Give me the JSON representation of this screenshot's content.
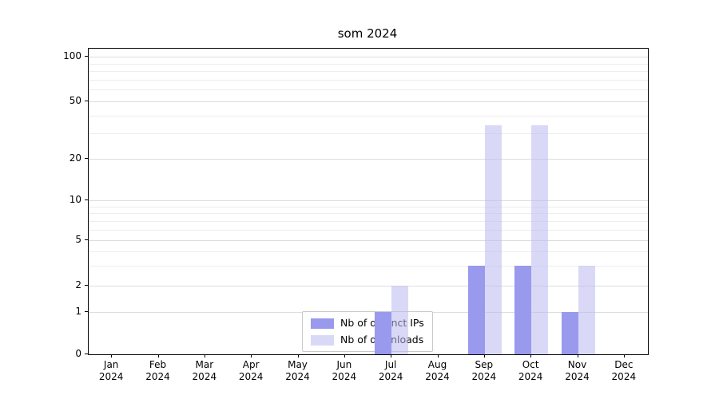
{
  "chart_data": {
    "type": "bar",
    "title": "som 2024",
    "scale": "symlog",
    "grid": true,
    "legend_position": "lower center",
    "x_year": "2024",
    "x_months": [
      "Jan",
      "Feb",
      "Mar",
      "Apr",
      "May",
      "Jun",
      "Jul",
      "Aug",
      "Sep",
      "Oct",
      "Nov",
      "Dec"
    ],
    "yticks": [
      0,
      1,
      2,
      5,
      10,
      20,
      50,
      100
    ],
    "series": [
      {
        "name": "Nb of distinct IPs",
        "color": "#9999ee",
        "alpha": 1,
        "values": [
          0,
          0,
          0,
          0,
          0,
          0,
          1,
          0,
          3,
          3,
          1,
          0
        ]
      },
      {
        "name": "Nb of downloads",
        "color": "#b9b9f0",
        "alpha": 0.55,
        "values": [
          0,
          0,
          0,
          0,
          0,
          0,
          2,
          0,
          34,
          34,
          3,
          0
        ]
      }
    ]
  }
}
